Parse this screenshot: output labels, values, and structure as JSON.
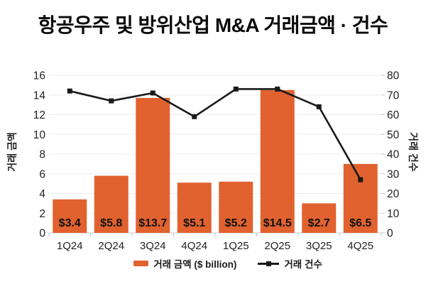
{
  "title": "항공우주 및 방위산업 M&A 거래금액 · 건수",
  "colors": {
    "bar": "#E1622F",
    "line": "#1A1A1A",
    "marker": "#1A1A1A",
    "grid": "#EDEDED",
    "axis_line": "#D8D8D8",
    "tick_mark": "#C6C6C6",
    "tick_text": "#212121",
    "bar_label_text": "#111111",
    "title_text": "#0A0A0A",
    "background": "#FFFFFF"
  },
  "chart_data": {
    "type": "combo-bar-line",
    "title": "항공우주 및 방위산업 M&A 거래금액 · 건수",
    "categories": [
      "1Q24",
      "2Q24",
      "3Q24",
      "4Q24",
      "1Q25",
      "2Q25",
      "3Q25",
      "4Q25"
    ],
    "series": [
      {
        "name": "거래 금액 ($ billion)",
        "chart_type": "bar",
        "axis": "left",
        "values": [
          3.4,
          5.8,
          13.7,
          5.1,
          5.2,
          14.5,
          2.7,
          6.5
        ],
        "value_labels": [
          "$3.4",
          "$5.8",
          "$13.7",
          "$5.1",
          "$5.2",
          "$14.5",
          "$2.7",
          "$6.5"
        ],
        "drawn_bar_heights": [
          3.4,
          5.8,
          13.7,
          5.1,
          5.2,
          14.5,
          3.0,
          7.0
        ]
      },
      {
        "name": "거래 건수",
        "chart_type": "line",
        "axis": "right",
        "values": [
          72,
          67,
          71,
          59,
          73,
          73,
          64,
          27
        ]
      }
    ],
    "left_axis": {
      "title": "거래 금액",
      "min": 0,
      "max": 16,
      "step": 2,
      "ticks": [
        "0",
        "2",
        "4",
        "6",
        "8",
        "10",
        "12",
        "14",
        "16"
      ]
    },
    "right_axis": {
      "title": "거래 건수",
      "min": 0,
      "max": 80,
      "step": 10,
      "ticks": [
        "0",
        "10",
        "20",
        "30",
        "40",
        "50",
        "60",
        "70",
        "80"
      ]
    },
    "legend": {
      "position": "bottom",
      "entries": [
        "거래 금액 ($ billion)",
        "거래 건수"
      ]
    },
    "grid": "horizontal"
  }
}
